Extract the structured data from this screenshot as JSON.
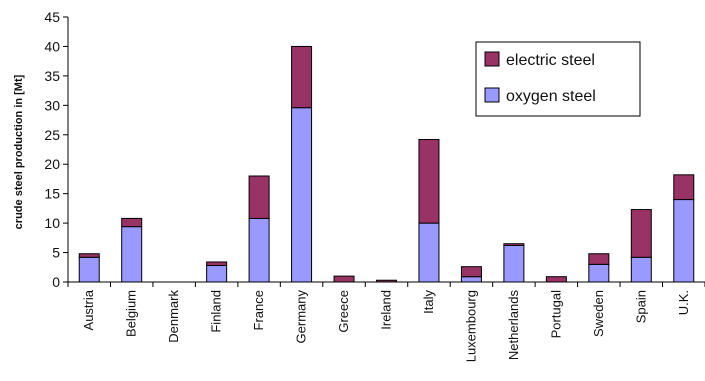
{
  "chart_data": {
    "type": "bar",
    "stacked": true,
    "title": "",
    "xlabel": "",
    "ylabel": "crude steel production in [Mt]",
    "ylim": [
      0,
      45
    ],
    "yticks": [
      0,
      5,
      10,
      15,
      20,
      25,
      30,
      35,
      40,
      45
    ],
    "grid": false,
    "legend_position": "top-right",
    "categories": [
      "Austria",
      "Belgium",
      "Denmark",
      "Finland",
      "France",
      "Germany",
      "Greece",
      "Ireland",
      "Italy",
      "Luxembourg",
      "Netherlands",
      "Portugal",
      "Sweden",
      "Spain",
      "U.K."
    ],
    "series": [
      {
        "name": "oxygen steel",
        "color": "#9999ff",
        "values": [
          4.2,
          9.4,
          0,
          2.8,
          10.8,
          29.6,
          0,
          0,
          10.0,
          0.9,
          6.2,
          0,
          3.0,
          4.2,
          14.0
        ]
      },
      {
        "name": "electric steel",
        "color": "#993366",
        "values": [
          0.6,
          1.4,
          0,
          0.6,
          7.2,
          10.4,
          1.0,
          0.3,
          14.2,
          1.7,
          0.3,
          0.9,
          1.8,
          8.1,
          4.2
        ]
      }
    ]
  }
}
